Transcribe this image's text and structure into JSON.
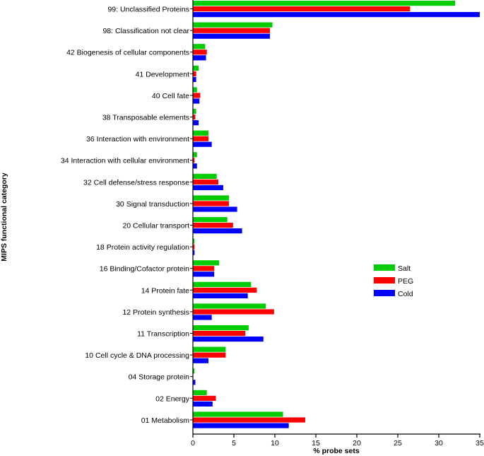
{
  "chart_data": {
    "type": "bar",
    "orientation": "horizontal",
    "categories": [
      "99: Unclassified Proteins",
      "98: Classification not clear",
      "42 Biogenesis of cellular components",
      "41 Development",
      "40 Cell fate",
      "38 Transposable elements",
      "36 Interaction with environment",
      "34 Interaction with cellular environment",
      "32 Cell defense/stress response",
      "30 Signal transduction",
      "20 Cellular transport",
      "18 Protein activity regulation",
      "16 Binding/Cofactor protein",
      "14 Protein fate",
      "12 Protein synthesis",
      "11 Transcription",
      "10 Cell cycle & DNA processing",
      "04 Storage protein",
      "02 Energy",
      "01 Metabolism"
    ],
    "series": [
      {
        "name": "Salt",
        "color": "#00cc00",
        "values": [
          32.0,
          9.7,
          1.5,
          0.7,
          0.5,
          0.4,
          1.9,
          0.5,
          2.9,
          4.4,
          4.2,
          0.2,
          3.2,
          7.1,
          8.9,
          6.8,
          4.0,
          0.2,
          1.7,
          11.0
        ]
      },
      {
        "name": "PEG",
        "color": "#ff0000",
        "values": [
          26.5,
          9.4,
          1.7,
          0.4,
          0.9,
          0.3,
          1.9,
          0.2,
          3.1,
          4.4,
          4.9,
          0.2,
          2.6,
          7.8,
          9.9,
          6.4,
          4.0,
          0.0,
          2.8,
          13.7
        ]
      },
      {
        "name": "Cold",
        "color": "#0000ff",
        "values": [
          35.0,
          9.4,
          1.6,
          0.4,
          0.8,
          0.7,
          2.3,
          0.5,
          3.7,
          5.4,
          6.0,
          0.2,
          2.6,
          6.7,
          2.3,
          8.6,
          1.9,
          0.3,
          2.4,
          11.7
        ]
      }
    ],
    "xlim": [
      0,
      35
    ],
    "xticks": [
      "0",
      "5",
      "10",
      "15",
      "20",
      "25",
      "30",
      "35"
    ],
    "xlabel": "% probe sets",
    "ylabel": "MIPS functional category",
    "legend": {
      "position": "right"
    },
    "grid": false
  }
}
